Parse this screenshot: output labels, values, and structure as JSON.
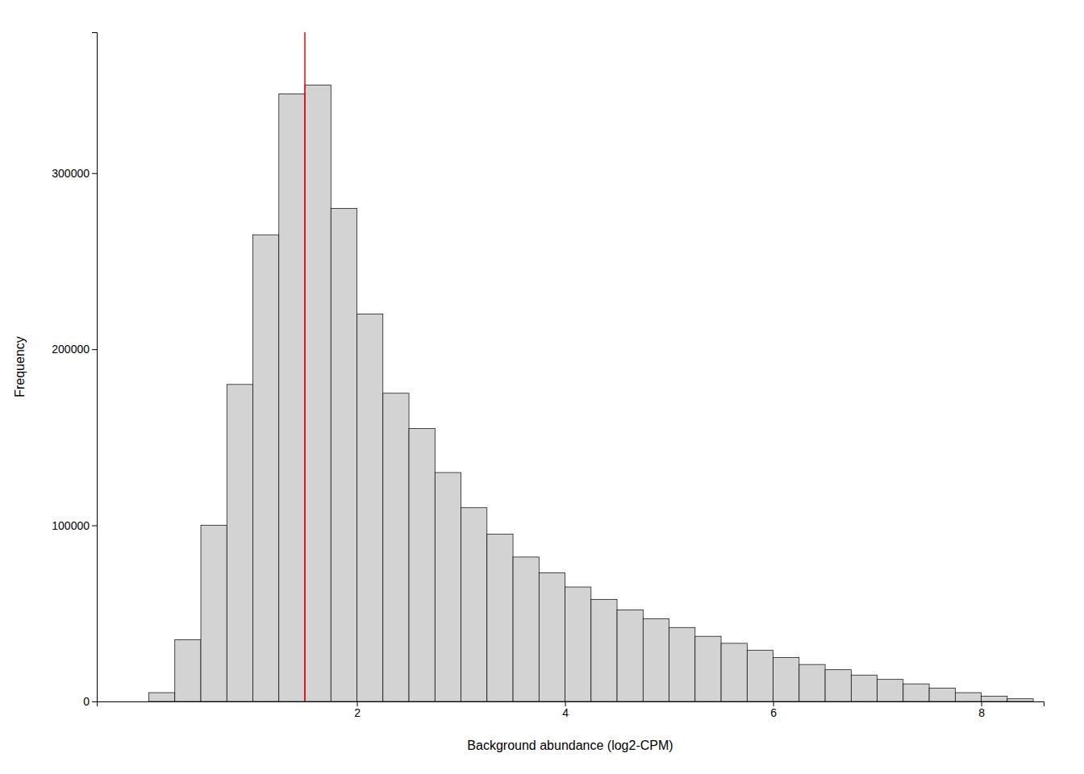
{
  "chart_data": {
    "type": "histogram",
    "xlabel": "Background abundance (log2-CPM)",
    "ylabel": "Frequency",
    "bins": [
      0.0,
      0.25,
      0.5,
      0.75,
      1.0,
      1.25,
      1.5,
      1.75,
      2.0,
      2.25,
      2.5,
      2.75,
      3.0,
      3.25,
      3.5,
      3.75,
      4.0,
      4.25,
      4.5,
      4.75,
      5.0,
      5.25,
      5.5,
      5.75,
      6.0,
      6.25,
      6.5,
      6.75,
      7.0,
      7.25,
      7.5,
      7.75,
      8.0,
      8.25,
      8.5
    ],
    "values": [
      5000,
      35000,
      100000,
      180000,
      265000,
      345000,
      350000,
      280000,
      220000,
      175000,
      155000,
      130000,
      110000,
      95000,
      82000,
      73000,
      65000,
      58000,
      52000,
      47000,
      42000,
      37000,
      33000,
      29000,
      25000,
      21000,
      18000,
      15000,
      12500,
      10000,
      7500,
      5000,
      3000,
      1500
    ],
    "color": "#d3d3d3",
    "reference_line": {
      "x": 1.5,
      "color": "#ff0000"
    },
    "xlim": [
      -0.5,
      8.6
    ],
    "ylim": [
      0,
      380000
    ],
    "xticks": [
      2,
      4,
      6,
      8
    ],
    "yticks": [
      0,
      100000,
      200000,
      300000
    ],
    "grid": false
  }
}
